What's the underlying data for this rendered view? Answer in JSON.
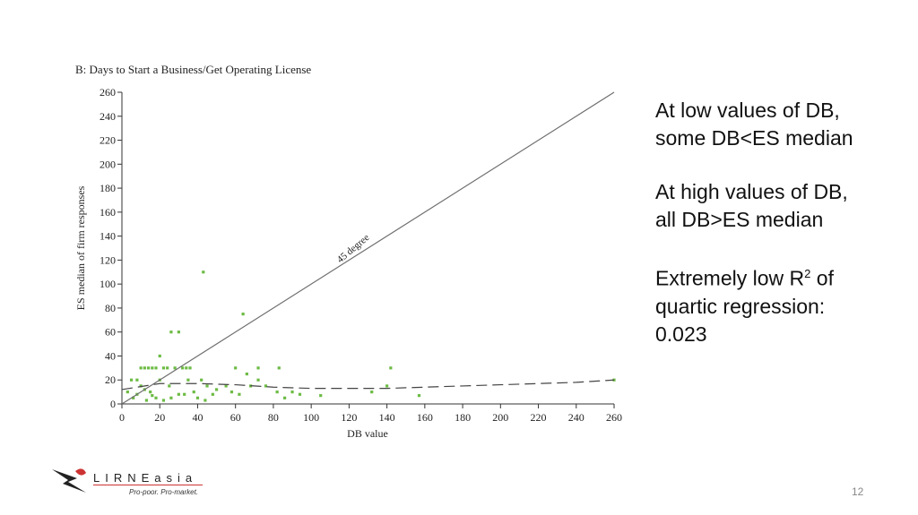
{
  "chart_data": {
    "type": "scatter",
    "title": "B: Days to Start a Business/Get Operating License",
    "xlabel": "DB value",
    "ylabel": "ES median of firm responses",
    "xlim": [
      0,
      260
    ],
    "ylim": [
      0,
      260
    ],
    "xticks": [
      0,
      20,
      40,
      60,
      80,
      100,
      120,
      140,
      160,
      180,
      200,
      220,
      240,
      260
    ],
    "yticks": [
      0,
      20,
      40,
      60,
      80,
      100,
      120,
      140,
      160,
      180,
      200,
      220,
      240,
      260
    ],
    "annotation": "45 degree",
    "series": [
      {
        "type": "scatter",
        "color": "#6dbb45",
        "x": [
          43,
          64,
          26,
          30,
          20,
          142,
          83,
          72,
          60,
          10,
          12,
          14,
          16,
          18,
          22,
          24,
          28,
          32,
          34,
          36,
          5,
          8,
          10,
          12,
          15,
          18,
          20,
          25,
          30,
          35,
          38,
          40,
          42,
          45,
          50,
          55,
          58,
          62,
          66,
          68,
          72,
          76,
          82,
          86,
          90,
          94,
          105,
          132,
          140,
          157,
          3,
          6,
          8,
          13,
          16,
          22,
          26,
          33,
          44,
          48,
          260
        ],
        "values": [
          110,
          75,
          60,
          60,
          40,
          30,
          30,
          30,
          30,
          30,
          30,
          30,
          30,
          30,
          30,
          30,
          30,
          30,
          30,
          30,
          20,
          20,
          15,
          12,
          10,
          5,
          20,
          15,
          8,
          20,
          10,
          5,
          20,
          15,
          12,
          15,
          10,
          8,
          25,
          15,
          20,
          15,
          10,
          5,
          10,
          8,
          7,
          10,
          15,
          7,
          10,
          5,
          8,
          3,
          7,
          3,
          5,
          8,
          3,
          8,
          20
        ]
      },
      {
        "type": "line",
        "color": "#6e6e6e",
        "dashed": false,
        "x": [
          0,
          260
        ],
        "values": [
          0,
          260
        ]
      },
      {
        "type": "line",
        "color": "#444444",
        "dashed": true,
        "x": [
          0,
          20,
          40,
          60,
          80,
          100,
          120,
          140,
          160,
          180,
          200,
          220,
          240,
          260
        ],
        "values": [
          12,
          17,
          17,
          16,
          14,
          13,
          13,
          13,
          14,
          15,
          16,
          17,
          18,
          20
        ]
      }
    ]
  },
  "slide": {
    "notes": [
      "At low values of DB, some DB<ES median",
      "At high values of DB, all DB>ES median"
    ],
    "r2_note": {
      "before": "Extremely low R",
      "superscript": "2",
      "after": "of quartic regression: 0.023"
    },
    "logo": {
      "name": "LIRNEasia",
      "tagline": "Pro-poor. Pro-market."
    },
    "page_number": "12"
  }
}
